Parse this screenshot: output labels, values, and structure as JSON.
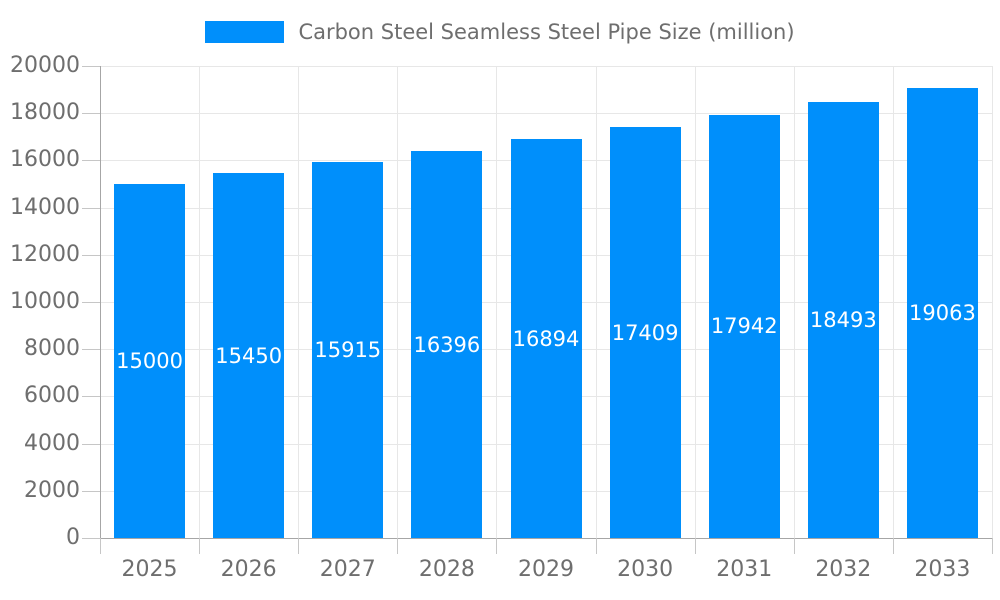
{
  "legend": {
    "label": "Carbon Steel Seamless Steel Pipe Size (million)"
  },
  "chart_data": {
    "type": "bar",
    "title": "Carbon Steel Seamless Steel Pipe Size (million)",
    "series_name": "Carbon Steel Seamless Steel Pipe Size (million)",
    "categories": [
      "2025",
      "2026",
      "2027",
      "2028",
      "2029",
      "2030",
      "2031",
      "2032",
      "2033"
    ],
    "values": [
      15000,
      15450,
      15915,
      16396,
      16894,
      17409,
      17942,
      18493,
      19063
    ],
    "data_labels": [
      "15000",
      "15450",
      "15915",
      "16396",
      "16894",
      "17409",
      "17942",
      "18493",
      "19063"
    ],
    "xlabel": "",
    "ylabel": "",
    "ylim": [
      0,
      20000
    ],
    "ytick_step": 2000,
    "ytick_labels": [
      "0",
      "2000",
      "4000",
      "6000",
      "8000",
      "10000",
      "12000",
      "14000",
      "16000",
      "18000",
      "20000"
    ],
    "grid": true,
    "legend_position": "top-center",
    "colors": {
      "bar_fill": "#008FFB",
      "data_label_text": "#ffffff",
      "axis_label_text": "#6e6e6e",
      "legend_text": "#6e6e6e",
      "gridline": "#e7e7e7",
      "axis_line": "#a6a6a6",
      "tick_line": "#c6c6c6"
    }
  }
}
